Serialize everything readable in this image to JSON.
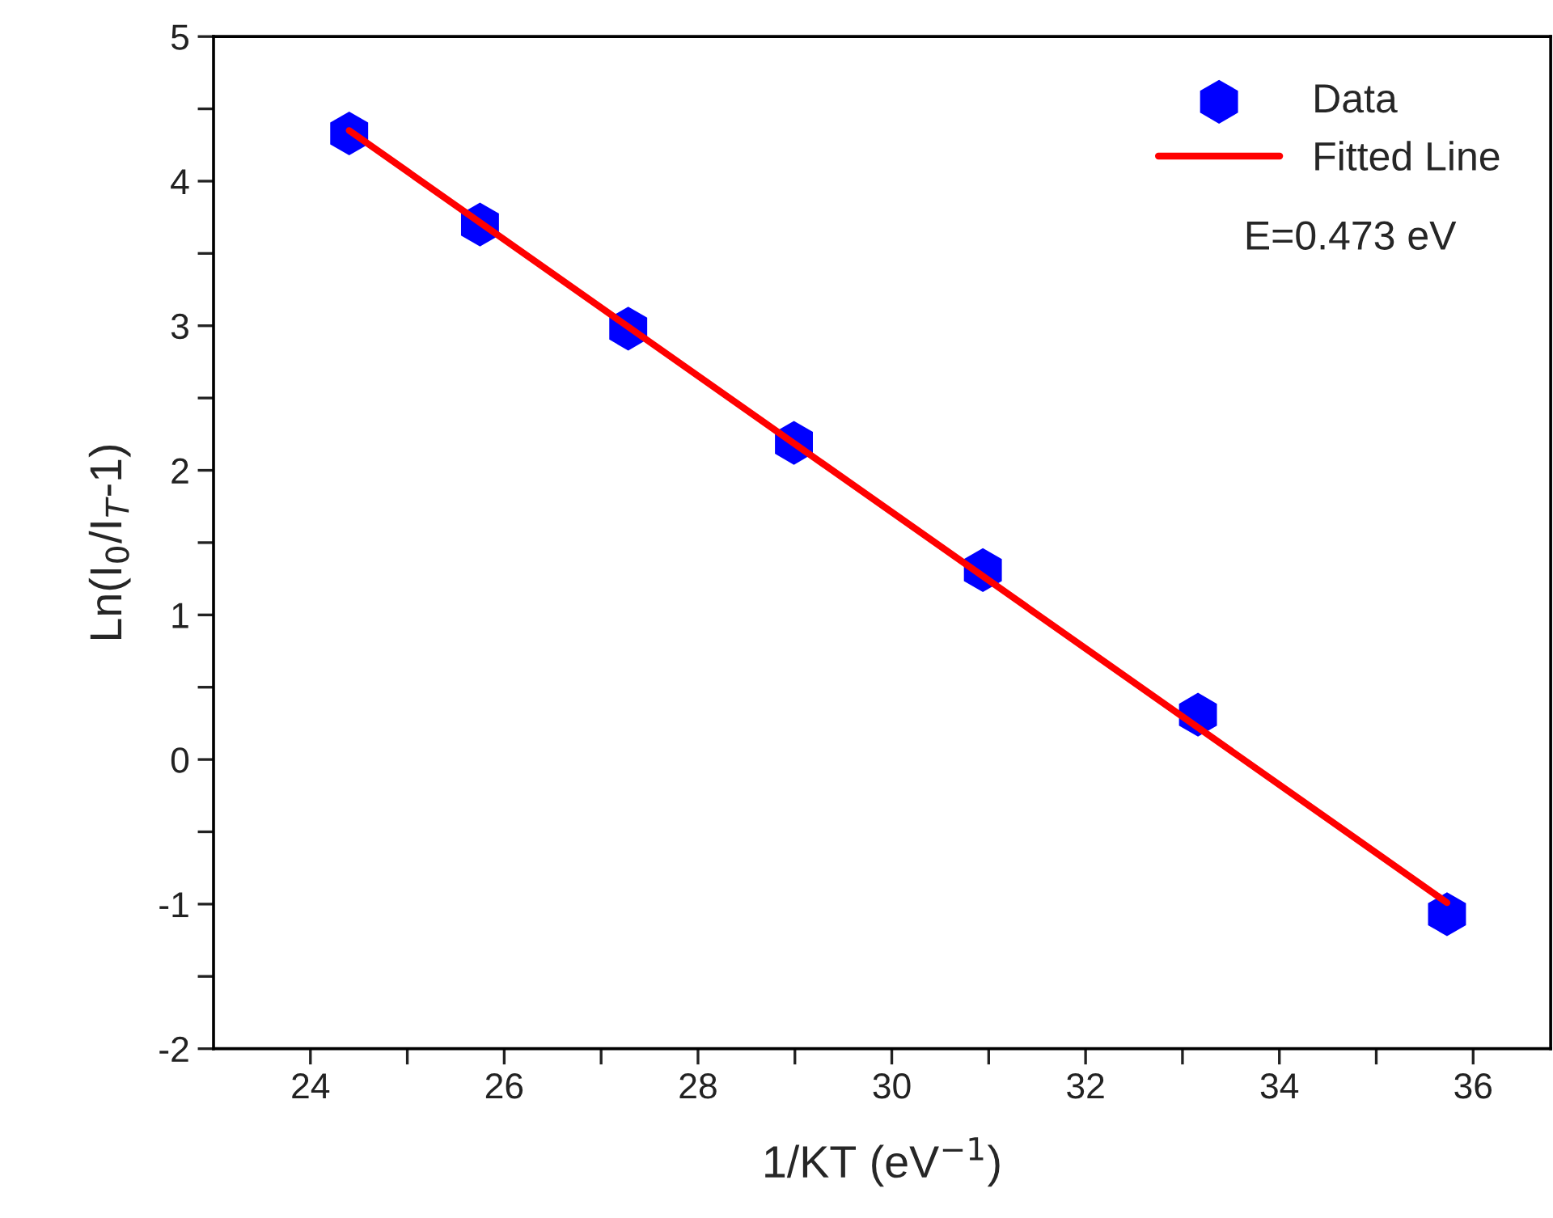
{
  "chart_data": {
    "type": "scatter",
    "xlabel": "1/KT (eV$^{−1}$)",
    "ylabel": "Ln(I$_{0}$/I$_{T}$-1)",
    "xlim": [
      23,
      36.8
    ],
    "ylim": [
      -2,
      5
    ],
    "xticks": [
      24,
      {
        "value": 25,
        "label": null
      },
      26,
      {
        "value": 27,
        "label": null
      },
      28,
      {
        "value": 29,
        "label": null
      },
      30,
      {
        "value": 31,
        "label": null
      },
      32,
      {
        "value": 33,
        "label": null
      },
      34,
      {
        "value": 35,
        "label": null
      },
      36
    ],
    "yticks": [
      -2,
      {
        "value": -1.5,
        "label": null
      },
      -1,
      {
        "value": -0.5,
        "label": null
      },
      0,
      {
        "value": 0.5,
        "label": null
      },
      1,
      {
        "value": 1.5,
        "label": null
      },
      2,
      {
        "value": 2.5,
        "label": null
      },
      3,
      {
        "value": 3.5,
        "label": null
      },
      4,
      {
        "value": 4.5,
        "label": null
      },
      5
    ],
    "series": [
      {
        "name": "Data",
        "color": "#0000ff",
        "x": [
          24.4,
          25.75,
          27.28,
          28.99,
          30.94,
          33.16,
          35.73
        ],
        "values": [
          4.33,
          3.7,
          2.98,
          2.19,
          1.31,
          0.31,
          -1.07
        ]
      },
      {
        "name": "Fitted Line",
        "type": "line",
        "color": "#ff0000",
        "line_style": "solid",
        "x": [
          24.4,
          35.73
        ],
        "values": [
          4.35,
          -0.99
        ]
      }
    ],
    "annotations": [
      "E=0.473 eV"
    ],
    "legend": "top right",
    "grid": false
  }
}
